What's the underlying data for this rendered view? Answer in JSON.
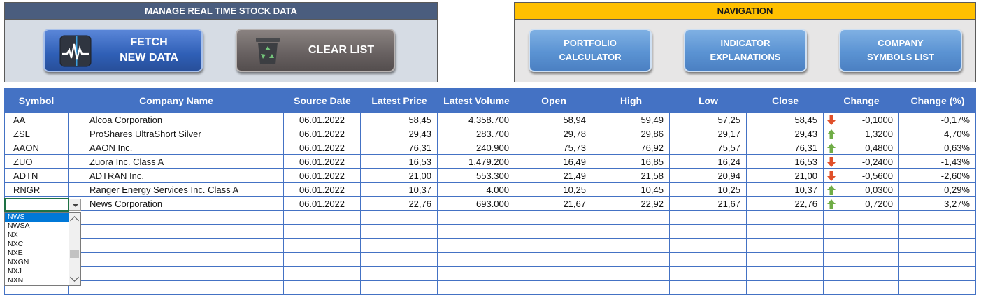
{
  "manage_panel": {
    "title": "MANAGE REAL TIME STOCK DATA",
    "fetch_button": {
      "line1": "FETCH",
      "line2": "NEW DATA"
    },
    "clear_button": {
      "label": "CLEAR LIST"
    }
  },
  "navigation_panel": {
    "title": "NAVIGATION",
    "buttons": [
      {
        "line1": "PORTFOLIO",
        "line2": "CALCULATOR"
      },
      {
        "line1": "INDICATOR",
        "line2": "EXPLANATIONS"
      },
      {
        "line1": "COMPANY",
        "line2": "SYMBOLS LIST"
      }
    ]
  },
  "table": {
    "headers": [
      "Symbol",
      "Company Name",
      "Source Date",
      "Latest Price",
      "Latest Volume",
      "Open",
      "High",
      "Low",
      "Close",
      "Change",
      "Change (%)"
    ],
    "rows": [
      {
        "symbol": "AA",
        "company": "Alcoa Corporation",
        "date": "06.01.2022",
        "price": "58,45",
        "volume": "4.358.700",
        "open": "58,94",
        "high": "59,49",
        "low": "57,25",
        "close": "58,45",
        "direction": "down",
        "change": "-0,1000",
        "change_pct": "-0,17%"
      },
      {
        "symbol": "ZSL",
        "company": "ProShares UltraShort Silver",
        "date": "06.01.2022",
        "price": "29,43",
        "volume": "283.700",
        "open": "29,78",
        "high": "29,86",
        "low": "29,17",
        "close": "29,43",
        "direction": "up",
        "change": "1,3200",
        "change_pct": "4,70%"
      },
      {
        "symbol": "AAON",
        "company": "AAON Inc.",
        "date": "06.01.2022",
        "price": "76,31",
        "volume": "240.900",
        "open": "75,73",
        "high": "76,92",
        "low": "75,57",
        "close": "76,31",
        "direction": "up",
        "change": "0,4800",
        "change_pct": "0,63%"
      },
      {
        "symbol": "ZUO",
        "company": "Zuora Inc. Class A",
        "date": "06.01.2022",
        "price": "16,53",
        "volume": "1.479.200",
        "open": "16,49",
        "high": "16,85",
        "low": "16,24",
        "close": "16,53",
        "direction": "down",
        "change": "-0,2400",
        "change_pct": "-1,43%"
      },
      {
        "symbol": "ADTN",
        "company": "ADTRAN Inc.",
        "date": "06.01.2022",
        "price": "21,00",
        "volume": "553.300",
        "open": "21,49",
        "high": "21,58",
        "low": "20,94",
        "close": "21,00",
        "direction": "down",
        "change": "-0,5600",
        "change_pct": "-2,60%"
      },
      {
        "symbol": "RNGR",
        "company": "Ranger Energy Services Inc. Class A",
        "date": "06.01.2022",
        "price": "10,37",
        "volume": "4.000",
        "open": "10,25",
        "high": "10,45",
        "low": "10,25",
        "close": "10,37",
        "direction": "up",
        "change": "0,0300",
        "change_pct": "0,29%"
      },
      {
        "symbol": "NWS",
        "company": "News Corporation",
        "date": "06.01.2022",
        "price": "22,76",
        "volume": "693.000",
        "open": "21,67",
        "high": "22,92",
        "low": "21,67",
        "close": "22,76",
        "direction": "up",
        "change": "0,7200",
        "change_pct": "3,27%"
      }
    ],
    "empty_rows": 6
  },
  "symbol_dropdown": {
    "selected": "NWS",
    "options": [
      "NWS",
      "NWSA",
      "NX",
      "NXC",
      "NXE",
      "NXGN",
      "NXJ",
      "NXN"
    ]
  },
  "colors": {
    "header_blue": "#4472c4",
    "arrow_up": "#70ad47",
    "arrow_down": "#e0502a",
    "nav_accent": "#ffc000"
  }
}
